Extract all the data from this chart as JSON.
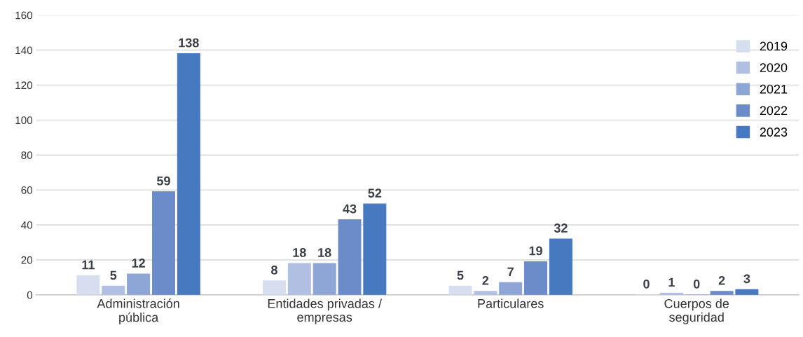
{
  "chart_data": {
    "type": "bar",
    "categories": [
      "Administración\npública",
      "Entidades privadas /\nempresas",
      "Particulares",
      "Cuerpos de\nseguridad"
    ],
    "series": [
      {
        "name": "2019",
        "color": "#d6deef",
        "values": [
          11,
          8,
          5,
          0
        ]
      },
      {
        "name": "2020",
        "color": "#b0bfe2",
        "values": [
          5,
          18,
          2,
          1
        ]
      },
      {
        "name": "2021",
        "color": "#8ea6d6",
        "values": [
          12,
          18,
          7,
          0
        ]
      },
      {
        "name": "2022",
        "color": "#6b8cc8",
        "values": [
          59,
          43,
          19,
          2
        ]
      },
      {
        "name": "2023",
        "color": "#4679c0",
        "values": [
          138,
          52,
          32,
          3
        ]
      }
    ],
    "ylim": [
      0,
      160
    ],
    "yticks": [
      0,
      20,
      40,
      60,
      80,
      100,
      120,
      140,
      160
    ],
    "grid": "y",
    "legend": "top right",
    "data_labels": true
  }
}
